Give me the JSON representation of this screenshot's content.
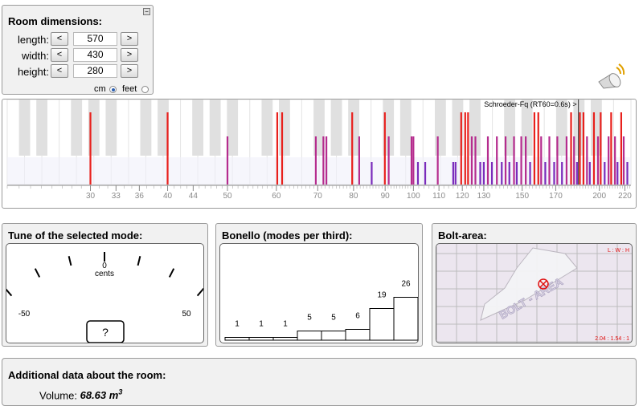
{
  "room": {
    "title": "Room dimensions:",
    "rows": [
      {
        "label": "length:",
        "value": "570",
        "dec": "<",
        "inc": ">"
      },
      {
        "label": "width:",
        "value": "430",
        "dec": "<",
        "inc": ">"
      },
      {
        "label": "height:",
        "value": "280",
        "dec": "<",
        "inc": ">"
      }
    ],
    "unit_cm": "cm",
    "unit_feet": "feet",
    "selected_unit": "cm"
  },
  "spectrum": {
    "schroeder_label": "Schroeder-Fq (RT60=0.6s) >",
    "schroeder_hz": 185,
    "x_min_hz": 22,
    "x_max_hz": 225,
    "tick_labels": [
      "30",
      "33",
      "36",
      "40",
      "44",
      "50",
      "60",
      "70",
      "80",
      "90",
      "100",
      "110",
      "120",
      "130",
      "150",
      "170",
      "200",
      "220"
    ],
    "tick_values": [
      30,
      33,
      36,
      40,
      44,
      50,
      60,
      70,
      80,
      90,
      100,
      110,
      120,
      130,
      150,
      170,
      200,
      220
    ],
    "mode_colors": {
      "axial": "#e8201c",
      "tangential": "#b52c8e",
      "oblique": "#7a2bbb"
    },
    "modes": [
      {
        "f": 30,
        "type": "axial"
      },
      {
        "f": 40,
        "type": "axial"
      },
      {
        "f": 50,
        "type": "tangential"
      },
      {
        "f": 60.2,
        "type": "axial"
      },
      {
        "f": 61.3,
        "type": "axial"
      },
      {
        "f": 69.5,
        "type": "tangential"
      },
      {
        "f": 71.5,
        "type": "tangential"
      },
      {
        "f": 72.3,
        "type": "tangential"
      },
      {
        "f": 79.6,
        "type": "axial"
      },
      {
        "f": 81.7,
        "type": "tangential"
      },
      {
        "f": 85.6,
        "type": "oblique"
      },
      {
        "f": 89.9,
        "type": "axial"
      },
      {
        "f": 91.2,
        "type": "tangential"
      },
      {
        "f": 99.3,
        "type": "tangential"
      },
      {
        "f": 100.0,
        "type": "tangential"
      },
      {
        "f": 101.7,
        "type": "oblique"
      },
      {
        "f": 104.5,
        "type": "oblique"
      },
      {
        "f": 109.5,
        "type": "tangential"
      },
      {
        "f": 116.0,
        "type": "oblique"
      },
      {
        "f": 117.0,
        "type": "oblique"
      },
      {
        "f": 119.5,
        "type": "axial"
      },
      {
        "f": 121.3,
        "type": "axial"
      },
      {
        "f": 122.6,
        "type": "axial"
      },
      {
        "f": 124.3,
        "type": "tangential"
      },
      {
        "f": 126.0,
        "type": "tangential"
      },
      {
        "f": 128.3,
        "type": "oblique"
      },
      {
        "f": 130.0,
        "type": "oblique"
      },
      {
        "f": 132.0,
        "type": "tangential"
      },
      {
        "f": 134.0,
        "type": "oblique"
      },
      {
        "f": 136.5,
        "type": "tangential"
      },
      {
        "f": 139.0,
        "type": "oblique"
      },
      {
        "f": 141.0,
        "type": "tangential"
      },
      {
        "f": 143.0,
        "type": "oblique"
      },
      {
        "f": 145.5,
        "type": "tangential"
      },
      {
        "f": 147.0,
        "type": "oblique"
      },
      {
        "f": 149.5,
        "type": "tangential"
      },
      {
        "f": 152.0,
        "type": "tangential"
      },
      {
        "f": 154.5,
        "type": "oblique"
      },
      {
        "f": 157.0,
        "type": "axial"
      },
      {
        "f": 159.3,
        "type": "axial"
      },
      {
        "f": 161.0,
        "type": "tangential"
      },
      {
        "f": 163.5,
        "type": "oblique"
      },
      {
        "f": 166.0,
        "type": "tangential"
      },
      {
        "f": 169.0,
        "type": "oblique"
      },
      {
        "f": 171.0,
        "type": "tangential"
      },
      {
        "f": 174.0,
        "type": "oblique"
      },
      {
        "f": 177.0,
        "type": "tangential"
      },
      {
        "f": 180.0,
        "type": "axial"
      },
      {
        "f": 182.0,
        "type": "tangential"
      },
      {
        "f": 184.0,
        "type": "oblique"
      },
      {
        "f": 186.0,
        "type": "axial"
      },
      {
        "f": 188.5,
        "type": "axial"
      },
      {
        "f": 191.0,
        "type": "tangential"
      },
      {
        "f": 193.0,
        "type": "oblique"
      },
      {
        "f": 196.0,
        "type": "axial"
      },
      {
        "f": 199.0,
        "type": "tangential"
      },
      {
        "f": 201.0,
        "type": "axial"
      },
      {
        "f": 204.0,
        "type": "oblique"
      },
      {
        "f": 207.0,
        "type": "tangential"
      },
      {
        "f": 209.0,
        "type": "axial"
      },
      {
        "f": 212.0,
        "type": "tangential"
      },
      {
        "f": 214.0,
        "type": "oblique"
      },
      {
        "f": 217.0,
        "type": "axial"
      },
      {
        "f": 219.0,
        "type": "tangential"
      },
      {
        "f": 222.0,
        "type": "oblique"
      }
    ]
  },
  "tune": {
    "title": "Tune of the selected mode:",
    "center_value": "0",
    "center_unit": "cents",
    "min_label": "-50",
    "max_label": "50",
    "readout": "?"
  },
  "bonello": {
    "title": "Bonello (modes per third):",
    "counts": [
      1,
      1,
      1,
      5,
      5,
      6,
      19,
      26
    ]
  },
  "bolt": {
    "title": "Bolt-area:",
    "corner_label": "L : W : H",
    "ratio_label": "2.04 : 1.54 : 1",
    "watermark": "BOLT - AREA"
  },
  "additional": {
    "title": "Additional data about the room:",
    "volume_label": "Volume:",
    "volume_value": "68.63 m",
    "volume_exp": "3"
  }
}
